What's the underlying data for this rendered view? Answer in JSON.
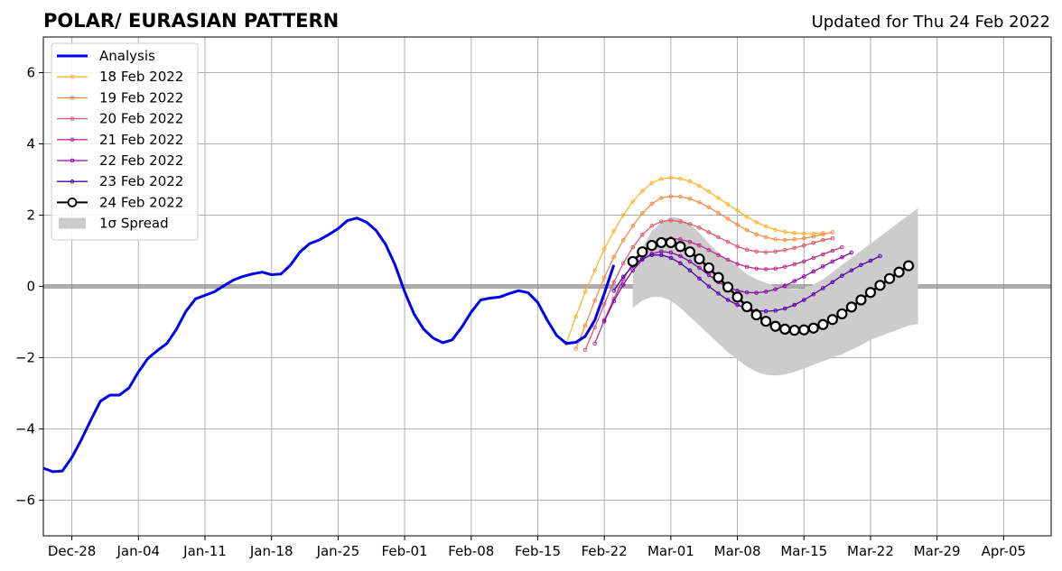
{
  "chart_data": {
    "type": "line",
    "title": "POLAR/ EURASIAN  PATTERN",
    "subtitle": "Updated for Thu 24 Feb 2022",
    "xlabel": "",
    "ylabel": "",
    "x_range": [
      "2021-12-25",
      "2022-04-10"
    ],
    "ylim": [
      -7,
      7
    ],
    "y_ticks": [
      -6,
      -4,
      -2,
      0,
      2,
      4,
      6
    ],
    "y_tick_labels": [
      "−6",
      "−4",
      "−2",
      "0",
      "2",
      "4",
      "6"
    ],
    "x_ticks": [
      "2021-12-28",
      "2022-01-04",
      "2022-01-11",
      "2022-01-18",
      "2022-01-25",
      "2022-02-01",
      "2022-02-08",
      "2022-02-15",
      "2022-02-22",
      "2022-03-01",
      "2022-03-08",
      "2022-03-15",
      "2022-03-22",
      "2022-03-29",
      "2022-04-05"
    ],
    "x_tick_labels": [
      "Dec-28",
      "Jan-04",
      "Jan-11",
      "Jan-18",
      "Jan-25",
      "Feb-01",
      "Feb-08",
      "Feb-15",
      "Feb-22",
      "Mar-01",
      "Mar-08",
      "Mar-15",
      "Mar-22",
      "Mar-29",
      "Apr-05"
    ],
    "grid": true,
    "zero_line": true,
    "legend_position": "upper-left",
    "analysis": {
      "name": "Analysis",
      "color": "#0000ee",
      "start": "2021-12-25",
      "values": [
        -5.1,
        -5.2,
        -5.18,
        -4.8,
        -4.3,
        -3.75,
        -3.22,
        -3.05,
        -3.05,
        -2.85,
        -2.4,
        -2.02,
        -1.8,
        -1.6,
        -1.2,
        -0.7,
        -0.35,
        -0.25,
        -0.15,
        0.02,
        0.18,
        0.28,
        0.35,
        0.4,
        0.33,
        0.35,
        0.6,
        0.97,
        1.2,
        1.3,
        1.45,
        1.62,
        1.85,
        1.92,
        1.8,
        1.57,
        1.18,
        0.6,
        -0.15,
        -0.78,
        -1.2,
        -1.45,
        -1.58,
        -1.5,
        -1.15,
        -0.72,
        -0.38,
        -0.33,
        -0.3,
        -0.2,
        -0.12,
        -0.18,
        -0.45,
        -0.95,
        -1.38,
        -1.6,
        -1.57,
        -1.4,
        -0.95,
        -0.2,
        0.6
      ]
    },
    "spread": {
      "name": "1σ Spread",
      "color": "#cccccc",
      "start": "2022-02-25",
      "upper": [
        0.6,
        1.1,
        1.55,
        1.8,
        1.95,
        1.9,
        1.75,
        1.5,
        1.2,
        0.95,
        0.75,
        0.55,
        0.35,
        0.2,
        0.1,
        0.0,
        -0.05,
        -0.08,
        -0.05,
        0.05,
        0.2,
        0.4,
        0.6,
        0.8,
        1.0,
        1.2,
        1.4,
        1.6,
        1.8,
        2.0,
        2.2
      ],
      "lower": [
        -0.6,
        -0.4,
        -0.3,
        -0.3,
        -0.4,
        -0.6,
        -0.85,
        -1.1,
        -1.35,
        -1.6,
        -1.85,
        -2.05,
        -2.25,
        -2.4,
        -2.48,
        -2.5,
        -2.47,
        -2.4,
        -2.3,
        -2.2,
        -2.1,
        -2.0,
        -1.9,
        -1.78,
        -1.65,
        -1.5,
        -1.4,
        -1.3,
        -1.2,
        -1.1,
        -1.05
      ]
    },
    "forecasts": [
      {
        "name": "18 Feb 2022",
        "color": "#fdb42f",
        "start": "2022-02-18",
        "values": [
          -1.6,
          -0.85,
          -0.15,
          0.45,
          1.05,
          1.55,
          2.0,
          2.38,
          2.68,
          2.9,
          3.02,
          3.05,
          3.02,
          2.95,
          2.82,
          2.66,
          2.48,
          2.3,
          2.13,
          1.95,
          1.8,
          1.68,
          1.59,
          1.53,
          1.5,
          1.48,
          1.48,
          1.5
        ]
      },
      {
        "name": "19 Feb 2022",
        "color": "#f68d45",
        "start": "2022-02-19",
        "values": [
          -1.75,
          -1.1,
          -0.4,
          0.25,
          0.82,
          1.3,
          1.7,
          2.05,
          2.32,
          2.48,
          2.53,
          2.52,
          2.46,
          2.36,
          2.22,
          2.06,
          1.9,
          1.73,
          1.58,
          1.46,
          1.38,
          1.32,
          1.3,
          1.32,
          1.35,
          1.4,
          1.46,
          1.52
        ]
      },
      {
        "name": "20 Feb 2022",
        "color": "#db5c68",
        "start": "2022-02-20",
        "values": [
          -1.78,
          -1.15,
          -0.5,
          0.12,
          0.65,
          1.1,
          1.45,
          1.7,
          1.82,
          1.85,
          1.82,
          1.75,
          1.65,
          1.52,
          1.38,
          1.25,
          1.12,
          1.03,
          0.98,
          0.96,
          0.98,
          1.02,
          1.08,
          1.15,
          1.22,
          1.3,
          1.35
        ]
      },
      {
        "name": "21 Feb 2022",
        "color": "#b83289",
        "start": "2022-02-21",
        "values": [
          -1.6,
          -0.95,
          -0.35,
          0.2,
          0.65,
          0.98,
          1.2,
          1.32,
          1.35,
          1.32,
          1.25,
          1.15,
          1.02,
          0.88,
          0.75,
          0.63,
          0.55,
          0.5,
          0.48,
          0.5,
          0.55,
          0.62,
          0.7,
          0.8,
          0.9,
          1.0,
          1.1
        ]
      },
      {
        "name": "22 Feb 2022",
        "color": "#8b0aa5",
        "start": "2022-02-22",
        "values": [
          -0.98,
          -0.42,
          0.05,
          0.45,
          0.75,
          0.92,
          0.98,
          0.95,
          0.85,
          0.7,
          0.52,
          0.32,
          0.12,
          -0.02,
          -0.12,
          -0.17,
          -0.18,
          -0.15,
          -0.08,
          0.02,
          0.15,
          0.28,
          0.42,
          0.56,
          0.7,
          0.82,
          0.95
        ]
      },
      {
        "name": "23 Feb 2022",
        "color": "#5302a3",
        "start": "2022-02-23",
        "values": [
          -0.12,
          0.27,
          0.58,
          0.78,
          0.88,
          0.88,
          0.8,
          0.65,
          0.45,
          0.22,
          0.0,
          -0.2,
          -0.38,
          -0.52,
          -0.62,
          -0.68,
          -0.7,
          -0.68,
          -0.62,
          -0.52,
          -0.38,
          -0.22,
          -0.05,
          0.12,
          0.3,
          0.45,
          0.6,
          0.72,
          0.85
        ]
      },
      {
        "name": "24 Feb 2022",
        "color": "#000000",
        "start": "2022-02-25",
        "marker": "circle",
        "values": [
          0.7,
          0.97,
          1.15,
          1.23,
          1.23,
          1.12,
          0.97,
          0.77,
          0.52,
          0.25,
          -0.02,
          -0.3,
          -0.57,
          -0.8,
          -0.98,
          -1.12,
          -1.2,
          -1.23,
          -1.22,
          -1.17,
          -1.07,
          -0.93,
          -0.77,
          -0.58,
          -0.38,
          -0.17,
          0.03,
          0.22,
          0.4,
          0.58
        ]
      }
    ]
  }
}
